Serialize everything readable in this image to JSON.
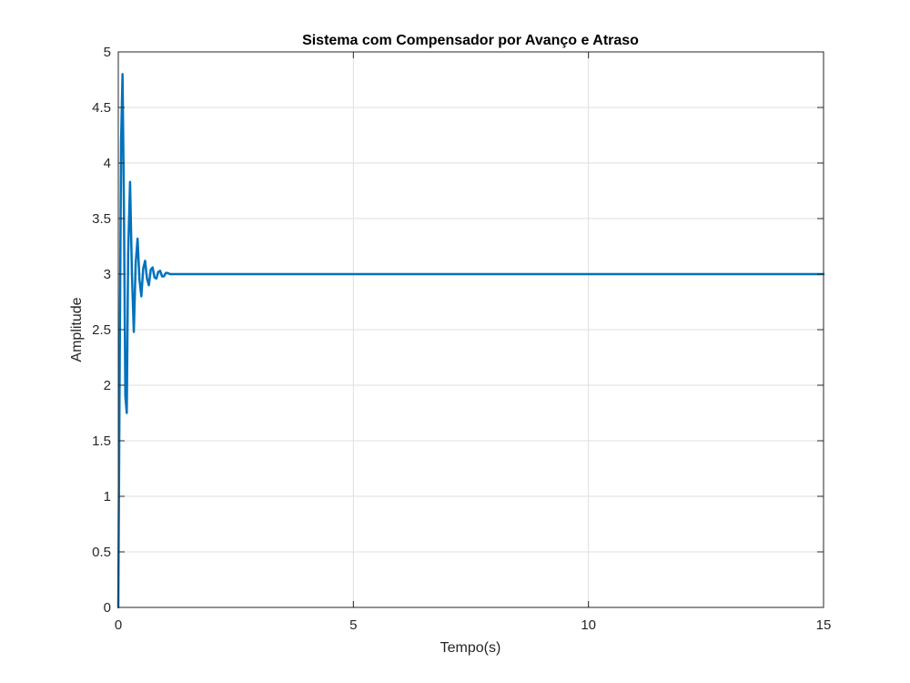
{
  "chart_data": {
    "type": "line",
    "title": "Sistema com Compensador por Avanço e Atraso",
    "xlabel": "Tempo(s)",
    "ylabel": "Amplitude",
    "xlim": [
      0,
      15
    ],
    "ylim": [
      0,
      5
    ],
    "xticks": [
      0,
      5,
      10,
      15
    ],
    "yticks": [
      0,
      0.5,
      1,
      1.5,
      2,
      2.5,
      3,
      3.5,
      4,
      4.5,
      5
    ],
    "grid": true,
    "series": [
      {
        "color": "#0072BD",
        "x": [
          0,
          0.03,
          0.06,
          0.09,
          0.12,
          0.15,
          0.18,
          0.21,
          0.25,
          0.29,
          0.33,
          0.37,
          0.41,
          0.45,
          0.49,
          0.53,
          0.57,
          0.61,
          0.65,
          0.69,
          0.73,
          0.77,
          0.81,
          0.85,
          0.89,
          0.93,
          0.97,
          1.01,
          1.05,
          1.1,
          1.15,
          1.2,
          1.3,
          1.5,
          2,
          3,
          4,
          5,
          6,
          7,
          8,
          9,
          10,
          11,
          12,
          13,
          14,
          15
        ],
        "y": [
          0,
          2.2,
          4.2,
          4.8,
          3.6,
          1.9,
          1.75,
          3.2,
          3.83,
          3.0,
          2.48,
          3.1,
          3.32,
          2.95,
          2.8,
          3.05,
          3.12,
          2.96,
          2.9,
          3.04,
          3.06,
          2.97,
          2.96,
          3.02,
          3.03,
          2.98,
          2.98,
          3.01,
          3.01,
          3.0,
          3.0,
          3.0,
          3.0,
          3.0,
          3.0,
          3.0,
          3.0,
          3.0,
          3.0,
          3.0,
          3.0,
          3.0,
          3.0,
          3.0,
          3.0,
          3.0,
          3.0,
          3.0
        ]
      }
    ]
  }
}
